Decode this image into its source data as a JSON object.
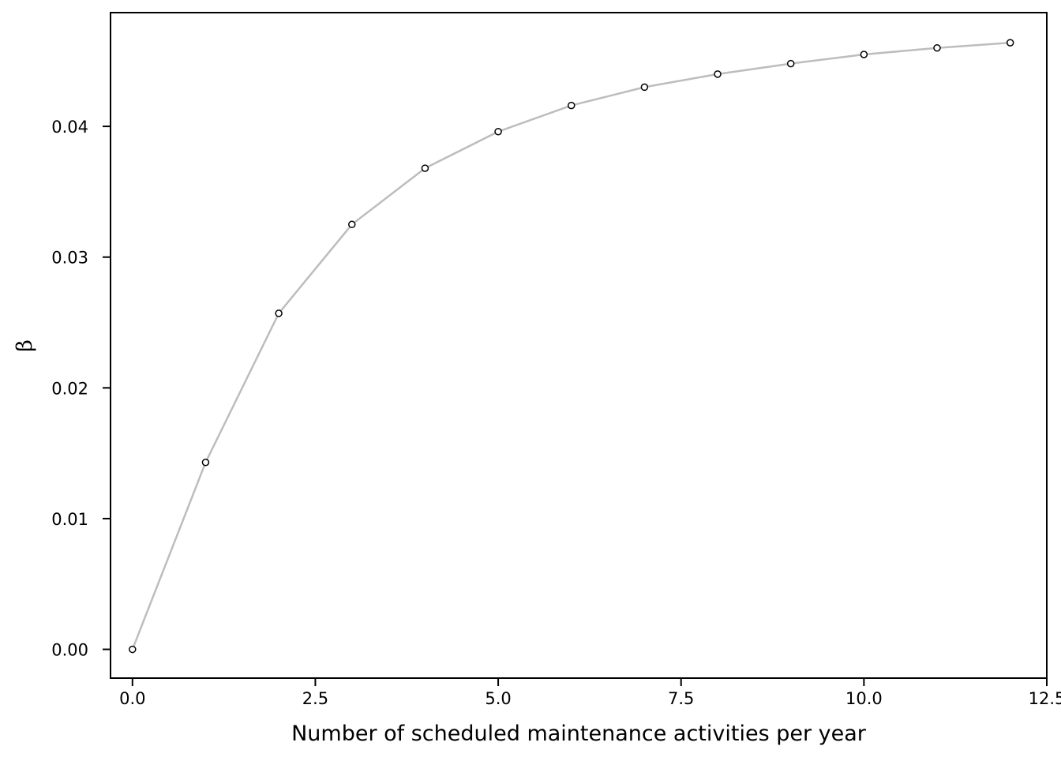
{
  "chart_data": {
    "type": "line",
    "title": "",
    "xlabel": "Number of scheduled maintenance activities per year",
    "ylabel": "β",
    "xlim": [
      -0.3,
      12.5
    ],
    "ylim": [
      -0.0022,
      0.0487
    ],
    "x_ticks": [
      0.0,
      2.5,
      5.0,
      7.5,
      10.0,
      12.5
    ],
    "x_tick_labels": [
      "0.0",
      "2.5",
      "5.0",
      "7.5",
      "10.0",
      "12.5"
    ],
    "y_ticks": [
      0.0,
      0.01,
      0.02,
      0.03,
      0.04
    ],
    "y_tick_labels": [
      "0.00",
      "0.01",
      "0.02",
      "0.03",
      "0.04"
    ],
    "grid": false,
    "line_color": "#bdbdbd",
    "marker": "open-circle",
    "series": [
      {
        "x": [
          0,
          1,
          2,
          3,
          4,
          5,
          6,
          7,
          8,
          9,
          10,
          11,
          12
        ],
        "values": [
          0.0,
          0.0143,
          0.0257,
          0.0325,
          0.0368,
          0.0396,
          0.0416,
          0.043,
          0.044,
          0.0448,
          0.0455,
          0.046,
          0.0464
        ]
      }
    ]
  }
}
